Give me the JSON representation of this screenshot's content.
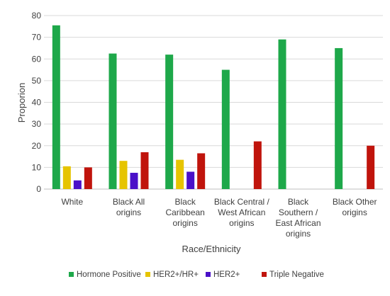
{
  "chart_data": {
    "type": "bar",
    "title": "",
    "xlabel": "Race/Ethnicity",
    "ylabel": "Proporion",
    "ylim": [
      0,
      80
    ],
    "yticks": [
      0,
      10,
      20,
      30,
      40,
      50,
      60,
      70,
      80
    ],
    "grid": true,
    "legend_position": "bottom",
    "categories": [
      [
        "White"
      ],
      [
        "Black All",
        "origins"
      ],
      [
        "Black",
        "Caribbean",
        "origins"
      ],
      [
        "Black Central /",
        "West African",
        "origins"
      ],
      [
        "Black",
        "Southern /",
        "East African",
        "origins"
      ],
      [
        "Black Other",
        "origins"
      ]
    ],
    "series": [
      {
        "name": "Hormone Positive",
        "color": "#1ea84a",
        "values": [
          75.5,
          62.5,
          62,
          55,
          69,
          65
        ]
      },
      {
        "name": "HER2+/HR+",
        "color": "#e6c400",
        "values": [
          10.5,
          13,
          13.5,
          null,
          null,
          null
        ]
      },
      {
        "name": "HER2+",
        "color": "#4a10c8",
        "values": [
          4,
          7.5,
          8,
          null,
          null,
          null
        ]
      },
      {
        "name": "Triple Negative",
        "color": "#c0140c",
        "values": [
          10,
          17,
          16.5,
          22,
          null,
          20
        ]
      }
    ]
  }
}
